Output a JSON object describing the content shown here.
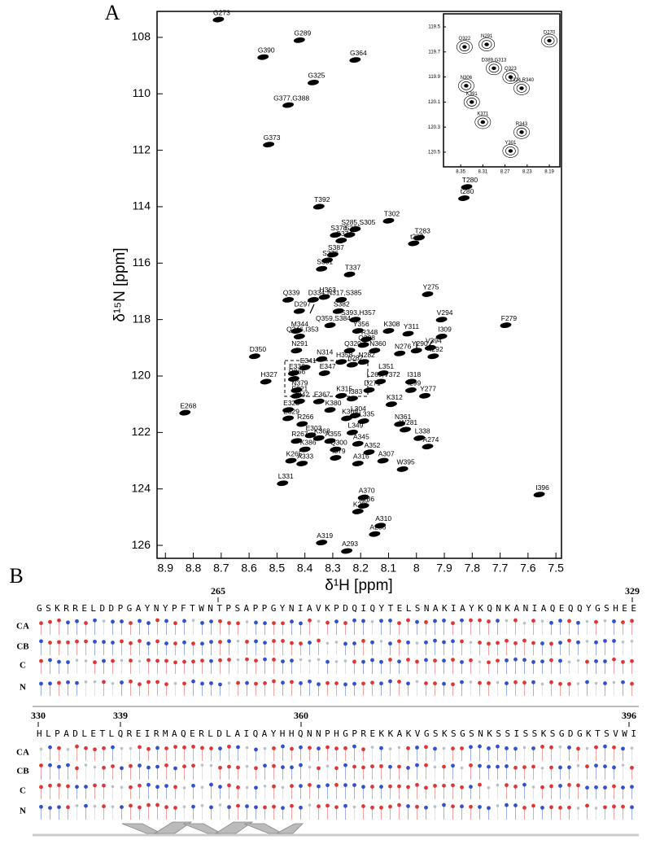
{
  "panels": [
    "A",
    "B"
  ],
  "chart_data": [
    {
      "type": "scatter",
      "xlabel": "δ¹H [ppm]",
      "ylabel": "δ¹⁵N [ppm]",
      "color": "#000000",
      "xlim": [
        8.93,
        7.48
      ],
      "ylim": [
        126.46,
        107.08
      ],
      "xticks": [
        8.9,
        8.8,
        8.7,
        8.6,
        8.5,
        8.4,
        8.3,
        8.2,
        8.1,
        8.0,
        7.9,
        7.8,
        7.7,
        7.6,
        7.5
      ],
      "yticks": [
        108,
        110,
        112,
        114,
        116,
        118,
        120,
        122,
        124,
        126
      ],
      "point_labels": [
        "G273",
        "G289",
        "G390",
        "G364",
        "G325",
        "G377,G388",
        "G373",
        "T392",
        "T302",
        "T280",
        "t280",
        "S285,S305",
        "S378",
        "S326",
        "T283",
        "t283",
        "S374",
        "S387",
        "S376",
        "S381",
        "T337",
        "D334",
        "H363",
        "N317,S385",
        "Q339",
        "S382",
        "D297",
        "S393,H357",
        "Y275",
        "V294",
        "F279",
        "Q359,S384",
        "Y356",
        "K308",
        "Y311",
        "M344",
        "R348",
        "Q346,I353",
        "Q298",
        "Y290",
        "V394",
        "I309",
        "Q320",
        "N360",
        "N276",
        "N291",
        "N314",
        "N282",
        "I292",
        "D350",
        "H358",
        "n282",
        "E341",
        "E336",
        "E347",
        "L351",
        "R366",
        "L269,V372",
        "H327",
        "I318",
        "I299",
        "N379",
        "D271",
        "Y277",
        "E321",
        "I383",
        "K315",
        "E367",
        "I342",
        "K312",
        "K380",
        "E268",
        "E328",
        "E329",
        "L304",
        "K369",
        "L335",
        "N361",
        "R266",
        "W281",
        "L349",
        "E303",
        "K368",
        "A355",
        "L338",
        "R267",
        "A345",
        "A274",
        "K386",
        "Q300",
        "A352",
        "f379",
        "K265",
        "A307",
        "A333",
        "A316",
        "W395",
        "L331",
        "A370",
        "a286",
        "K295",
        "I396",
        "A310",
        "A286",
        "A319",
        "A293"
      ],
      "x": [
        8.71,
        8.42,
        8.55,
        8.22,
        8.37,
        8.46,
        8.53,
        8.35,
        8.1,
        7.82,
        7.83,
        8.22,
        8.29,
        8.24,
        7.99,
        8.01,
        8.27,
        8.3,
        8.32,
        8.34,
        8.24,
        8.37,
        8.33,
        8.27,
        8.46,
        8.28,
        8.42,
        8.22,
        7.96,
        7.91,
        7.68,
        8.31,
        8.21,
        8.1,
        8.03,
        8.43,
        8.18,
        8.42,
        8.19,
        8.0,
        7.95,
        7.91,
        8.24,
        8.15,
        8.06,
        8.43,
        8.34,
        8.19,
        7.94,
        8.58,
        8.27,
        8.23,
        8.4,
        8.44,
        8.33,
        8.12,
        8.44,
        8.13,
        8.54,
        8.02,
        8.02,
        8.43,
        8.17,
        7.97,
        8.43,
        8.23,
        8.27,
        8.35,
        8.42,
        8.09,
        8.31,
        8.83,
        8.46,
        8.46,
        8.22,
        8.25,
        8.19,
        8.06,
        8.41,
        8.04,
        8.23,
        8.38,
        8.35,
        8.31,
        7.99,
        8.43,
        8.21,
        7.96,
        8.4,
        8.29,
        8.17,
        8.29,
        8.45,
        8.12,
        8.41,
        8.21,
        8.05,
        8.48,
        8.19,
        8.19,
        8.21,
        7.56,
        8.13,
        8.15,
        8.34,
        8.25
      ],
      "values": [
        107.37,
        108.1,
        108.7,
        108.8,
        109.6,
        110.4,
        111.8,
        114.0,
        114.5,
        113.3,
        113.7,
        114.8,
        115.0,
        115.0,
        115.1,
        115.3,
        115.2,
        115.7,
        115.9,
        116.2,
        116.4,
        117.3,
        117.2,
        117.3,
        117.3,
        117.7,
        117.7,
        118.0,
        117.1,
        118.0,
        118.2,
        118.2,
        118.4,
        118.4,
        118.5,
        118.4,
        118.7,
        118.6,
        118.9,
        119.1,
        119.0,
        118.6,
        119.1,
        119.1,
        119.2,
        119.1,
        119.4,
        119.5,
        119.3,
        119.3,
        119.5,
        119.6,
        119.7,
        119.9,
        119.9,
        119.9,
        120.1,
        120.2,
        120.2,
        120.2,
        120.5,
        120.5,
        120.5,
        120.7,
        120.7,
        120.8,
        120.7,
        120.9,
        120.9,
        121.0,
        121.2,
        121.3,
        121.2,
        121.5,
        121.4,
        121.5,
        121.6,
        121.7,
        121.7,
        121.9,
        122.0,
        122.1,
        122.2,
        122.3,
        122.2,
        122.3,
        122.4,
        122.5,
        122.6,
        122.6,
        122.7,
        122.9,
        123.0,
        123.0,
        123.1,
        123.1,
        123.3,
        123.8,
        124.3,
        124.6,
        124.8,
        124.2,
        125.3,
        125.6,
        125.9,
        126.2
      ]
    },
    {
      "type": "scatter",
      "color": "#000000",
      "xlim": [
        8.381,
        8.171
      ],
      "ylim": [
        120.617,
        119.396
      ],
      "xticks": [
        8.35,
        8.31,
        8.27,
        8.23,
        8.19
      ],
      "yticks": [
        119.5,
        119.7,
        119.9,
        120.1,
        120.3,
        120.5
      ],
      "point_labels": [
        "N291",
        "Q322",
        "D389,G313",
        "D270",
        "Q323",
        "N306",
        "Y324,R340",
        "K391",
        "K371",
        "R343",
        "Y301"
      ],
      "x": [
        8.303,
        8.343,
        8.29,
        8.19,
        8.26,
        8.34,
        8.24,
        8.33,
        8.31,
        8.24,
        8.26
      ],
      "values": [
        119.64,
        119.66,
        119.83,
        119.61,
        119.9,
        119.97,
        119.99,
        120.1,
        120.26,
        120.34,
        120.49
      ]
    }
  ],
  "panel_b": {
    "row_labels": [
      "CA",
      "CB",
      "C",
      "N"
    ],
    "rows": [
      {
        "ticks": [
          265,
          329
        ],
        "sequence": "GSKRRELDDPGAYNYPFTWNTPSAPPGYNIAVKPDQIQYTELSNAKIAYKQNKANIAQEQQYGSHEE"
      },
      {
        "ticks": [
          330,
          339,
          360,
          396
        ],
        "sequence": "HLPADLETLQREIRMAQERLDLAIQAYHHQNNPHGPREKKAKVGSKSGSNKSSISSKSGDGKTSVWI"
      }
    ]
  }
}
